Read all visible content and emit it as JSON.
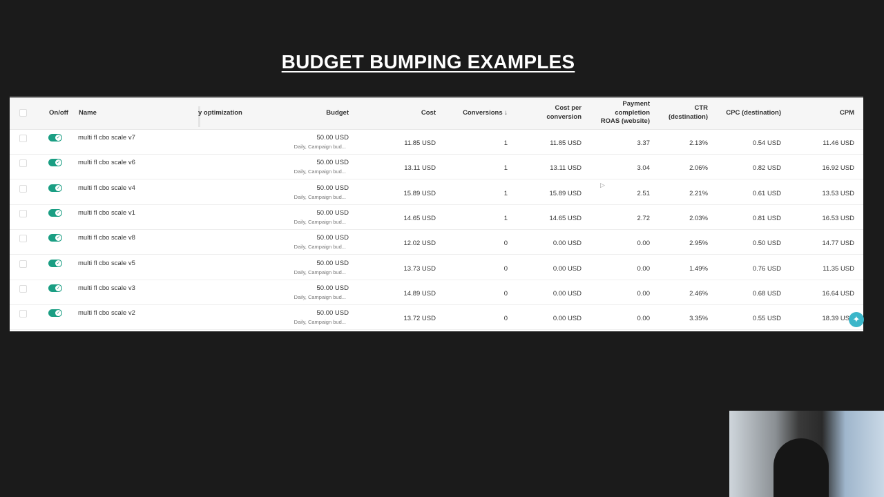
{
  "title": "BUDGET BUMPING EXAMPLES",
  "accent_color": "#1a9e83",
  "table": {
    "headers": {
      "onoff": "On/off",
      "name": "Name",
      "optimization": "y optimization",
      "budget": "Budget",
      "cost": "Cost",
      "conversions": "Conversions ↓",
      "cost_per_conversion": [
        "Cost per",
        "conversion"
      ],
      "roas": [
        "Payment",
        "completion",
        "ROAS (website)"
      ],
      "ctr": [
        "CTR",
        "(destination)"
      ],
      "cpc": "CPC (destination)",
      "cpm": "CPM"
    },
    "rows": [
      {
        "on": true,
        "name": "multi fl cbo scale v7",
        "budget": "50.00 USD",
        "budget_sub": "Daily, Campaign bud...",
        "cost": "11.85 USD",
        "conversions": "1",
        "cpa": "11.85 USD",
        "roas": "3.37",
        "ctr": "2.13%",
        "cpc": "0.54 USD",
        "cpm": "11.46 USD"
      },
      {
        "on": true,
        "name": "multi fl cbo scale v6",
        "budget": "50.00 USD",
        "budget_sub": "Daily, Campaign bud...",
        "cost": "13.11 USD",
        "conversions": "1",
        "cpa": "13.11 USD",
        "roas": "3.04",
        "ctr": "2.06%",
        "cpc": "0.82 USD",
        "cpm": "16.92 USD"
      },
      {
        "on": true,
        "name": "multi fl cbo scale v4",
        "budget": "50.00 USD",
        "budget_sub": "Daily, Campaign bud...",
        "cost": "15.89 USD",
        "conversions": "1",
        "cpa": "15.89 USD",
        "roas": "2.51",
        "ctr": "2.21%",
        "cpc": "0.61 USD",
        "cpm": "13.53 USD"
      },
      {
        "on": true,
        "name": "multi fl cbo scale v1",
        "budget": "50.00 USD",
        "budget_sub": "Daily, Campaign bud...",
        "cost": "14.65 USD",
        "conversions": "1",
        "cpa": "14.65 USD",
        "roas": "2.72",
        "ctr": "2.03%",
        "cpc": "0.81 USD",
        "cpm": "16.53 USD"
      },
      {
        "on": true,
        "name": "multi fl cbo scale v8",
        "budget": "50.00 USD",
        "budget_sub": "Daily, Campaign bud...",
        "cost": "12.02 USD",
        "conversions": "0",
        "cpa": "0.00 USD",
        "roas": "0.00",
        "ctr": "2.95%",
        "cpc": "0.50 USD",
        "cpm": "14.77 USD"
      },
      {
        "on": true,
        "name": "multi fl cbo scale v5",
        "budget": "50.00 USD",
        "budget_sub": "Daily, Campaign bud...",
        "cost": "13.73 USD",
        "conversions": "0",
        "cpa": "0.00 USD",
        "roas": "0.00",
        "ctr": "1.49%",
        "cpc": "0.76 USD",
        "cpm": "11.35 USD"
      },
      {
        "on": true,
        "name": "multi fl cbo scale v3",
        "budget": "50.00 USD",
        "budget_sub": "Daily, Campaign bud...",
        "cost": "14.89 USD",
        "conversions": "0",
        "cpa": "0.00 USD",
        "roas": "0.00",
        "ctr": "2.46%",
        "cpc": "0.68 USD",
        "cpm": "16.64 USD"
      },
      {
        "on": true,
        "name": "multi fl cbo scale v2",
        "budget": "50.00 USD",
        "budget_sub": "Daily, Campaign bud...",
        "cost": "13.72 USD",
        "conversions": "0",
        "cpa": "0.00 USD",
        "roas": "0.00",
        "ctr": "3.35%",
        "cpc": "0.55 USD",
        "cpm": "18.39 USD"
      }
    ]
  }
}
